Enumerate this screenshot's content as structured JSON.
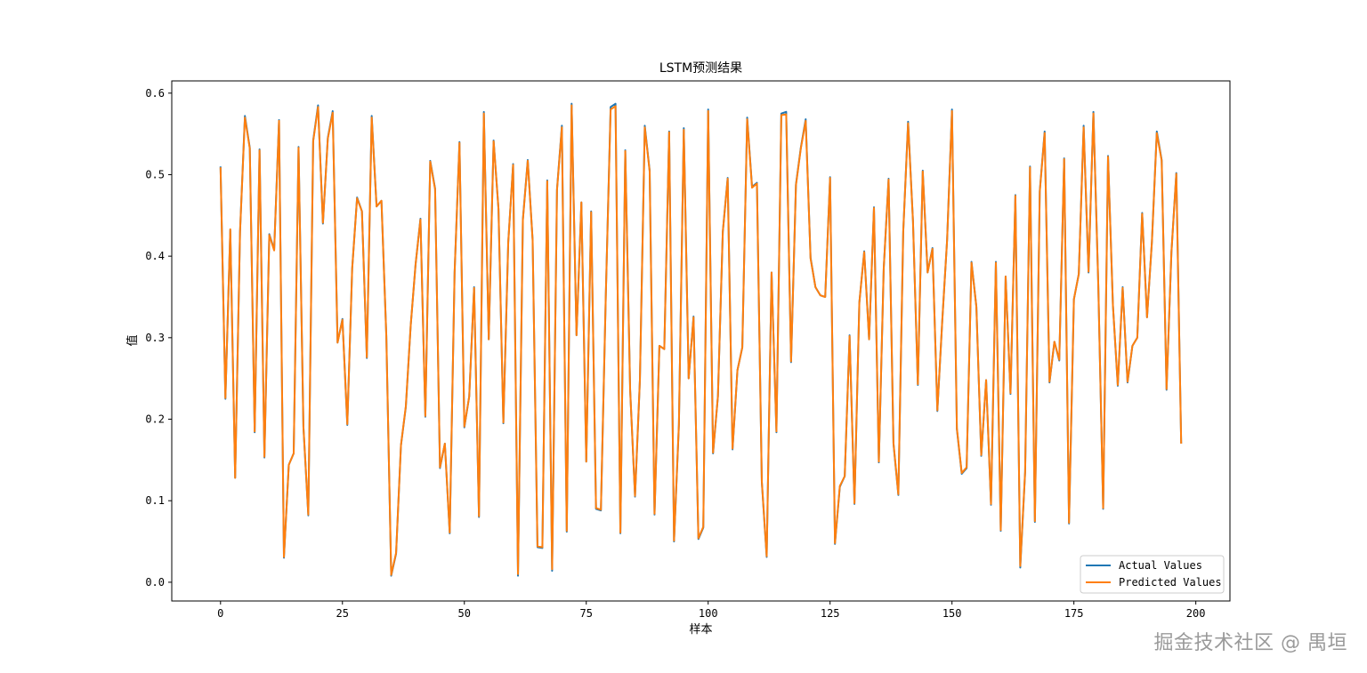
{
  "colors": {
    "actual": "#1f77b4",
    "predicted": "#ff7f0e"
  },
  "watermark": "掘金技术社区 @ 禺垣",
  "chart_data": {
    "type": "line",
    "title": "LSTM预测结果",
    "xlabel": "样本",
    "ylabel": "值",
    "xlim": [
      -10,
      207
    ],
    "ylim": [
      -0.023,
      0.615
    ],
    "xticks": [
      0,
      25,
      50,
      75,
      100,
      125,
      150,
      175,
      200
    ],
    "yticks": [
      0.0,
      0.1,
      0.2,
      0.3,
      0.4,
      0.5,
      0.6
    ],
    "ytick_labels": [
      "0.0",
      "0.1",
      "0.2",
      "0.3",
      "0.4",
      "0.5",
      "0.6"
    ],
    "grid": false,
    "legend_position": "lower-right",
    "series": [
      {
        "name": "Actual Values",
        "color": "#1f77b4",
        "values": [
          0.51,
          0.225,
          0.432,
          0.128,
          0.43,
          0.572,
          0.533,
          0.184,
          0.531,
          0.153,
          0.427,
          0.408,
          0.567,
          0.03,
          0.144,
          0.158,
          0.534,
          0.19,
          0.082,
          0.542,
          0.585,
          0.44,
          0.545,
          0.578,
          0.294,
          0.323,
          0.193,
          0.385,
          0.472,
          0.455,
          0.275,
          0.572,
          0.461,
          0.468,
          0.302,
          0.008,
          0.035,
          0.168,
          0.215,
          0.315,
          0.39,
          0.446,
          0.203,
          0.517,
          0.483,
          0.14,
          0.17,
          0.06,
          0.38,
          0.54,
          0.19,
          0.228,
          0.362,
          0.08,
          0.577,
          0.298,
          0.542,
          0.458,
          0.195,
          0.417,
          0.513,
          0.008,
          0.445,
          0.518,
          0.42,
          0.043,
          0.042,
          0.493,
          0.014,
          0.482,
          0.56,
          0.062,
          0.587,
          0.303,
          0.466,
          0.148,
          0.455,
          0.09,
          0.088,
          0.35,
          0.583,
          0.587,
          0.06,
          0.53,
          0.236,
          0.105,
          0.248,
          0.56,
          0.505,
          0.083,
          0.29,
          0.286,
          0.553,
          0.05,
          0.193,
          0.557,
          0.25,
          0.326,
          0.053,
          0.067,
          0.58,
          0.158,
          0.228,
          0.43,
          0.496,
          0.163,
          0.26,
          0.288,
          0.57,
          0.485,
          0.49,
          0.123,
          0.031,
          0.38,
          0.184,
          0.575,
          0.577,
          0.27,
          0.488,
          0.533,
          0.568,
          0.398,
          0.362,
          0.352,
          0.35,
          0.497,
          0.047,
          0.117,
          0.13,
          0.303,
          0.096,
          0.343,
          0.406,
          0.298,
          0.46,
          0.147,
          0.385,
          0.495,
          0.17,
          0.107,
          0.43,
          0.565,
          0.443,
          0.242,
          0.505,
          0.38,
          0.41,
          0.21,
          0.32,
          0.42,
          0.58,
          0.188,
          0.133,
          0.14,
          0.393,
          0.338,
          0.155,
          0.248,
          0.095,
          0.393,
          0.063,
          0.375,
          0.231,
          0.475,
          0.018,
          0.135,
          0.51,
          0.074,
          0.48,
          0.553,
          0.245,
          0.295,
          0.272,
          0.52,
          0.072,
          0.347,
          0.378,
          0.56,
          0.38,
          0.577,
          0.365,
          0.09,
          0.523,
          0.34,
          0.241,
          0.362,
          0.245,
          0.29,
          0.3,
          0.453,
          0.325,
          0.418,
          0.553,
          0.518,
          0.236,
          0.405,
          0.502,
          0.17
        ]
      },
      {
        "name": "Predicted Values",
        "color": "#ff7f0e",
        "values": [
          0.509,
          0.226,
          0.433,
          0.128,
          0.43,
          0.57,
          0.532,
          0.185,
          0.53,
          0.154,
          0.426,
          0.407,
          0.566,
          0.031,
          0.144,
          0.158,
          0.533,
          0.191,
          0.083,
          0.541,
          0.583,
          0.441,
          0.544,
          0.576,
          0.294,
          0.322,
          0.194,
          0.385,
          0.471,
          0.455,
          0.276,
          0.57,
          0.461,
          0.468,
          0.302,
          0.009,
          0.036,
          0.168,
          0.216,
          0.315,
          0.39,
          0.445,
          0.204,
          0.516,
          0.482,
          0.141,
          0.17,
          0.061,
          0.38,
          0.539,
          0.191,
          0.228,
          0.361,
          0.081,
          0.575,
          0.298,
          0.541,
          0.458,
          0.196,
          0.417,
          0.512,
          0.01,
          0.444,
          0.517,
          0.42,
          0.044,
          0.043,
          0.492,
          0.016,
          0.481,
          0.558,
          0.063,
          0.585,
          0.303,
          0.466,
          0.148,
          0.454,
          0.091,
          0.089,
          0.35,
          0.58,
          0.584,
          0.061,
          0.529,
          0.236,
          0.106,
          0.248,
          0.558,
          0.504,
          0.084,
          0.29,
          0.286,
          0.552,
          0.051,
          0.194,
          0.555,
          0.25,
          0.325,
          0.054,
          0.068,
          0.578,
          0.159,
          0.228,
          0.43,
          0.495,
          0.164,
          0.26,
          0.288,
          0.568,
          0.484,
          0.489,
          0.124,
          0.032,
          0.38,
          0.185,
          0.573,
          0.574,
          0.271,
          0.487,
          0.532,
          0.566,
          0.397,
          0.362,
          0.352,
          0.35,
          0.496,
          0.048,
          0.118,
          0.13,
          0.302,
          0.097,
          0.343,
          0.405,
          0.298,
          0.459,
          0.148,
          0.385,
          0.494,
          0.171,
          0.108,
          0.43,
          0.563,
          0.443,
          0.243,
          0.504,
          0.38,
          0.409,
          0.211,
          0.32,
          0.42,
          0.578,
          0.189,
          0.134,
          0.141,
          0.392,
          0.338,
          0.156,
          0.248,
          0.096,
          0.392,
          0.064,
          0.375,
          0.232,
          0.474,
          0.02,
          0.136,
          0.509,
          0.075,
          0.479,
          0.551,
          0.246,
          0.295,
          0.273,
          0.519,
          0.073,
          0.347,
          0.378,
          0.558,
          0.381,
          0.575,
          0.365,
          0.091,
          0.522,
          0.34,
          0.242,
          0.361,
          0.246,
          0.29,
          0.3,
          0.452,
          0.325,
          0.418,
          0.551,
          0.517,
          0.237,
          0.405,
          0.501,
          0.17
        ]
      }
    ]
  }
}
